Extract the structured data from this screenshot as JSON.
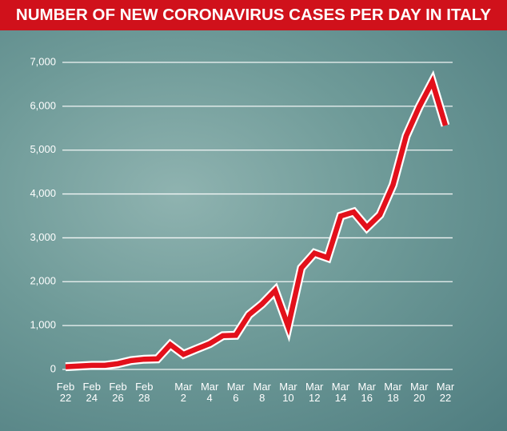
{
  "chart_data": {
    "type": "line",
    "title": "NUMBER OF NEW CORONAVIRUS CASES PER DAY IN ITALY",
    "categories": [
      "Feb 22",
      null,
      "Feb 24",
      null,
      "Feb 26",
      null,
      "Feb 28",
      null,
      null,
      "Mar 2",
      null,
      "Mar 4",
      null,
      "Mar 6",
      null,
      "Mar 8",
      null,
      "Mar 10",
      null,
      "Mar 12",
      null,
      "Mar 14",
      null,
      "Mar 16",
      null,
      "Mar 18",
      null,
      "Mar 20",
      null,
      "Mar 22"
    ],
    "series": [
      {
        "name": "New cases",
        "color": "#e3101b",
        "values": [
          62,
          77,
          93,
          93,
          131,
          202,
          233,
          240,
          566,
          342,
          466,
          587,
          769,
          778,
          1247,
          1492,
          1797,
          977,
          2313,
          2651,
          2547,
          3497,
          3590,
          3233,
          3526,
          4207,
          5322,
          5986,
          6557,
          5560
        ]
      }
    ],
    "ylim": [
      0,
      7000
    ],
    "yticks": [
      0,
      {
        "value": 1000,
        "label": "1,000"
      },
      {
        "value": 2000,
        "label": "2,000"
      },
      {
        "value": 3000,
        "label": "3,000"
      },
      {
        "value": 4000,
        "label": "4,000"
      },
      {
        "value": 5000,
        "label": "5,000"
      },
      {
        "value": 6000,
        "label": "6,000"
      },
      {
        "value": 7000,
        "label": "7,000"
      }
    ],
    "grid": true
  }
}
